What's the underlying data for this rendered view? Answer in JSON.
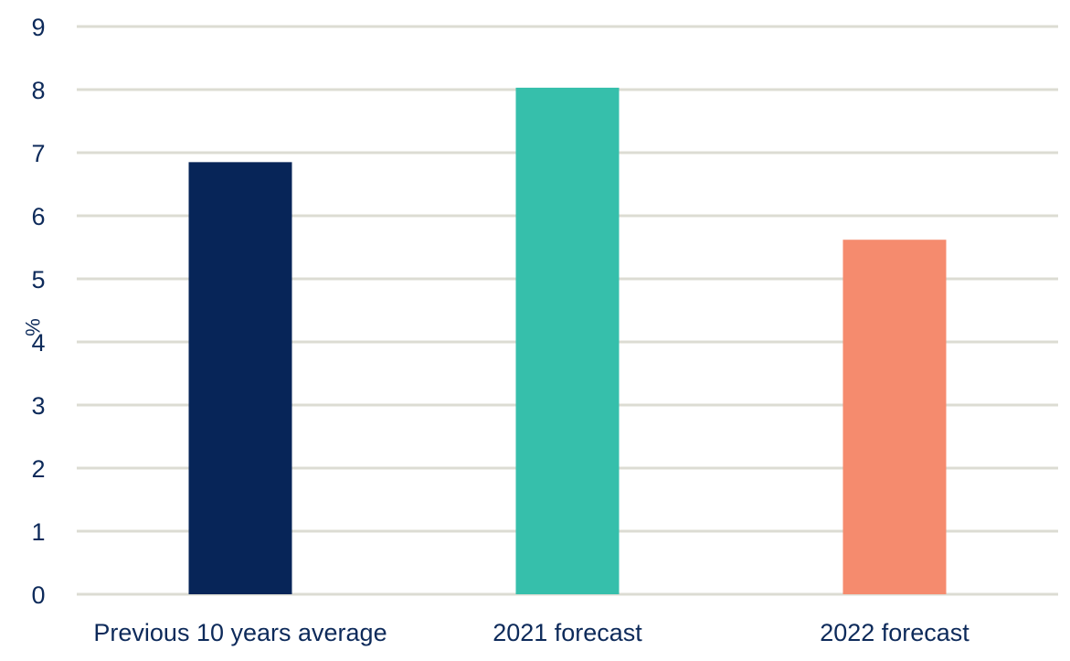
{
  "chart_data": {
    "type": "bar",
    "title": "",
    "xlabel": "",
    "ylabel": "%",
    "categories": [
      "Previous 10 years average",
      "2021 forecast",
      "2022 forecast"
    ],
    "values": [
      6.85,
      8.03,
      5.62
    ],
    "ylim": [
      0,
      9
    ],
    "yticks": [
      "0",
      "1",
      "2",
      "3",
      "4",
      "5",
      "6",
      "7",
      "8",
      "9"
    ],
    "grid": true,
    "legend": "none",
    "bar_colors": [
      "#072558",
      "#36bfab",
      "#f58b6e"
    ],
    "colors": {
      "gridline": "#dcdcd3",
      "tick_text": "#0d2a5a"
    }
  }
}
